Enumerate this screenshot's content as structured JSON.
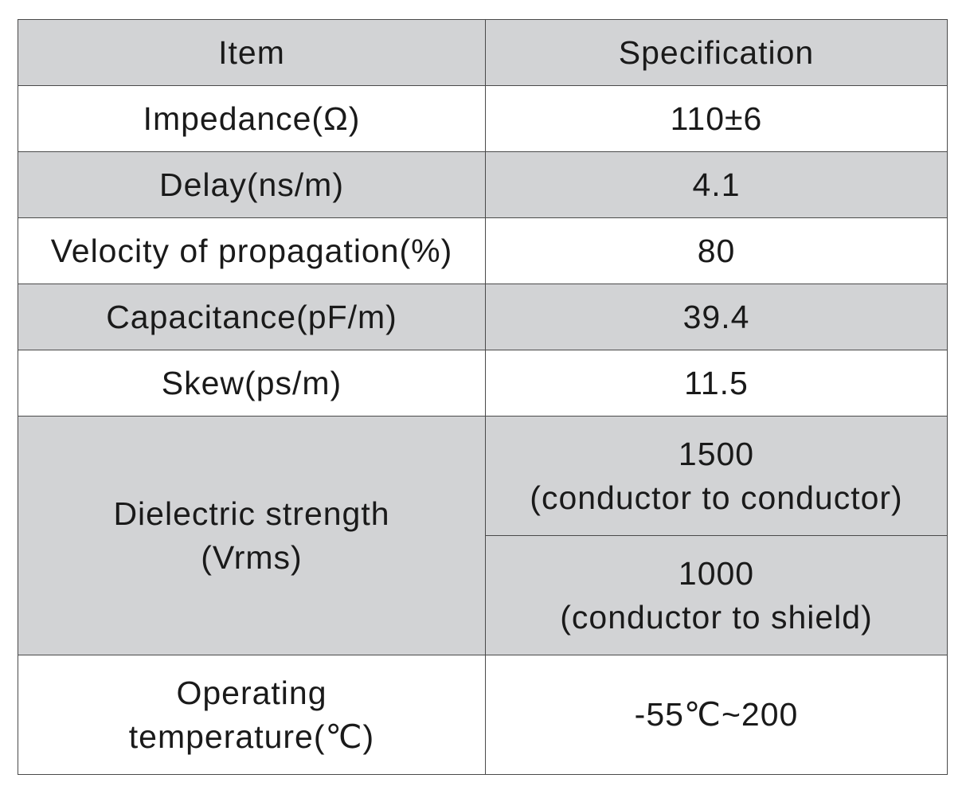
{
  "table": {
    "headers": [
      "Item",
      "Specification"
    ],
    "rows": [
      {
        "item": "Impedance(Ω)",
        "spec": "110±6"
      },
      {
        "item": "Delay(ns/m)",
        "spec": "4.1"
      },
      {
        "item": "Velocity of propagation(%)",
        "spec": "80"
      },
      {
        "item": "Capacitance(pF/m)",
        "spec": "39.4"
      },
      {
        "item": "Skew(ps/m)",
        "spec": "11.5"
      }
    ],
    "dielectric": {
      "item_line1": "Dielectric strength",
      "item_line2": "(Vrms)",
      "spec1_line1": "1500",
      "spec1_line2": "(conductor to conductor)",
      "spec2_line1": "1000",
      "spec2_line2": "(conductor to shield)"
    },
    "operating": {
      "item_line1": "Operating",
      "item_line2": "temperature(℃)",
      "spec": "-55℃~200"
    }
  },
  "colors": {
    "shaded_row": "#d2d3d5",
    "border": "#4a4a4a",
    "text": "#1a1a1a"
  }
}
